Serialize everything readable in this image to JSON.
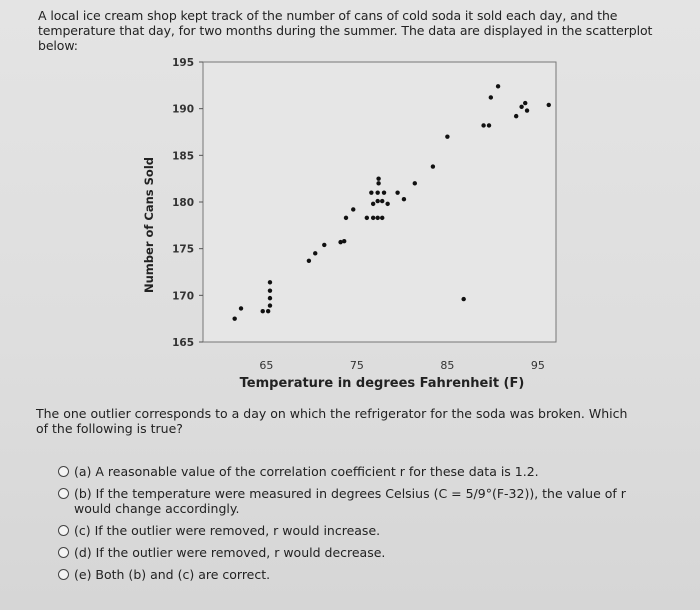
{
  "intro_text": "A local ice cream shop kept track of the number of cans of cold soda it sold each day, and the temperature that day, for two months during the summer. The data are displayed in the scatterplot below:",
  "chart_data": {
    "type": "scatter",
    "xlabel": "Temperature in degrees Fahrenheit (F)",
    "ylabel": "Number of Cans Sold",
    "xlim": [
      58,
      97
    ],
    "ylim": [
      165,
      195
    ],
    "xticks": [
      "65",
      "75",
      "85",
      "95"
    ],
    "yticks": [
      "165",
      "170",
      "175",
      "180",
      "185",
      "190",
      "195"
    ],
    "grid": false,
    "point_color": "#111111",
    "points": [
      [
        61.5,
        167.5
      ],
      [
        62.2,
        168.6
      ],
      [
        64.6,
        168.3
      ],
      [
        65.2,
        168.3
      ],
      [
        65.4,
        168.9
      ],
      [
        65.4,
        169.7
      ],
      [
        65.4,
        170.5
      ],
      [
        65.4,
        171.4
      ],
      [
        69.7,
        173.7
      ],
      [
        70.4,
        174.5
      ],
      [
        71.4,
        175.4
      ],
      [
        73.2,
        175.7
      ],
      [
        73.6,
        175.8
      ],
      [
        73.8,
        178.3
      ],
      [
        74.6,
        179.2
      ],
      [
        76.1,
        178.3
      ],
      [
        76.8,
        178.3
      ],
      [
        77.3,
        178.3
      ],
      [
        77.8,
        178.3
      ],
      [
        76.8,
        179.8
      ],
      [
        77.3,
        180.1
      ],
      [
        77.8,
        180.1
      ],
      [
        78.4,
        179.8
      ],
      [
        76.6,
        181.0
      ],
      [
        77.3,
        181.0
      ],
      [
        78.0,
        181.0
      ],
      [
        77.4,
        182.0
      ],
      [
        77.4,
        182.5
      ],
      [
        79.5,
        181.0
      ],
      [
        80.2,
        180.3
      ],
      [
        81.4,
        182.0
      ],
      [
        83.4,
        183.8
      ],
      [
        85.0,
        187.0
      ],
      [
        89.0,
        188.2
      ],
      [
        89.6,
        188.2
      ],
      [
        89.8,
        191.2
      ],
      [
        90.6,
        192.4
      ],
      [
        92.6,
        189.2
      ],
      [
        93.2,
        190.2
      ],
      [
        93.6,
        190.6
      ],
      [
        93.8,
        189.8
      ],
      [
        96.2,
        190.4
      ],
      [
        86.8,
        169.6
      ]
    ]
  },
  "question_text": "The one outlier corresponds to a day on which the refrigerator for the soda was broken. Which of the following is true?",
  "choices": [
    {
      "label": "(a) A reasonable value of the correlation coefficient r for these data is 1.2."
    },
    {
      "label": "(b) If the temperature were measured in degrees Celsius (C = 5/9°(F-32)), the value of r would change accordingly."
    },
    {
      "label": "(c) If the outlier were removed, r would increase."
    },
    {
      "label": "(d) If the outlier were removed, r would decrease."
    },
    {
      "label": "(e) Both (b) and (c) are correct."
    }
  ]
}
